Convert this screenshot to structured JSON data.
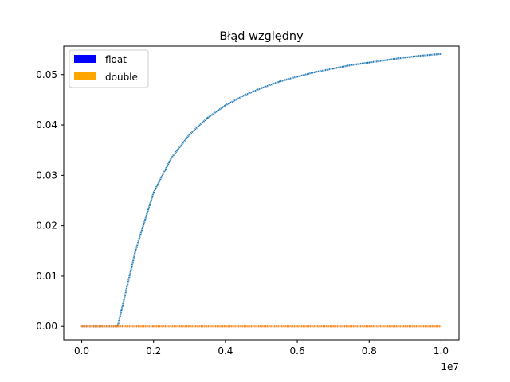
{
  "chart_data": {
    "type": "scatter",
    "title": "Błąd względny",
    "xlabel": "",
    "ylabel": "",
    "x_offset_label": "1e7",
    "xlim": [
      -0.05,
      1.05
    ],
    "ylim": [
      -0.00265,
      0.05565
    ],
    "x_ticks": [
      0.0,
      0.2,
      0.4,
      0.6,
      0.8,
      1.0
    ],
    "x_tick_labels": [
      "0.0",
      "0.2",
      "0.4",
      "0.6",
      "0.8",
      "1.0"
    ],
    "y_ticks": [
      0.0,
      0.01,
      0.02,
      0.03,
      0.04,
      0.05
    ],
    "y_tick_labels": [
      "0.00",
      "0.01",
      "0.02",
      "0.03",
      "0.04",
      "0.05"
    ],
    "grid": false,
    "legend": {
      "position": "top-left",
      "entries": [
        {
          "label": "float",
          "color": "#0000ff"
        },
        {
          "label": "double",
          "color": "#ffa500"
        }
      ]
    },
    "series": [
      {
        "name": "float",
        "color": "#1f77b4",
        "x": [
          0.0,
          0.05,
          0.1,
          0.15,
          0.2,
          0.25,
          0.3,
          0.35,
          0.4,
          0.45,
          0.5,
          0.55,
          0.6,
          0.65,
          0.7,
          0.75,
          0.8,
          0.85,
          0.9,
          0.95,
          1.0
        ],
        "y": [
          0.0,
          0.0,
          0.0,
          0.0151,
          0.0266,
          0.0335,
          0.0381,
          0.0414,
          0.0439,
          0.0458,
          0.0473,
          0.0486,
          0.0496,
          0.0505,
          0.0512,
          0.0519,
          0.0524,
          0.0529,
          0.0534,
          0.0538,
          0.0541
        ]
      },
      {
        "name": "double",
        "color": "#ff7f0e",
        "x": [
          0.0,
          0.1,
          0.2,
          0.3,
          0.4,
          0.5,
          0.6,
          0.7,
          0.8,
          0.9,
          1.0
        ],
        "y": [
          0,
          0,
          0,
          0,
          0,
          0,
          0,
          0,
          0,
          0,
          0
        ]
      }
    ]
  }
}
